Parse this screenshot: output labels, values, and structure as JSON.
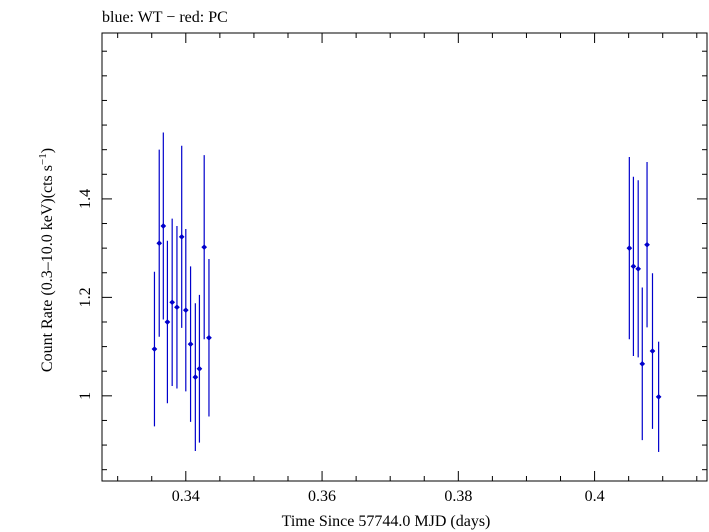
{
  "chart_data": {
    "type": "scatter",
    "title": "blue: WT − red: PC",
    "xlabel": "Time Since 57744.0 MJD (days)",
    "ylabel_parts": {
      "before": "Count Rate (0.3–10.0 keV)(cts s",
      "sup": "−1",
      "after": ")"
    },
    "xlim": [
      0.3277,
      0.4165
    ],
    "ylim": [
      0.827,
      1.737
    ],
    "xticks": [
      0.34,
      0.36,
      0.38,
      0.4
    ],
    "xticklabels": [
      "0.34",
      "0.36",
      "0.38",
      "0.4"
    ],
    "yticks": [
      1.0,
      1.2,
      1.4
    ],
    "yticklabels": [
      "1",
      "1.2",
      "1.4"
    ],
    "grid": false,
    "series": [
      {
        "name": "WT",
        "color": "#0000cc",
        "x_halfwidth": 0.00033,
        "points": [
          {
            "x": 0.3354,
            "y": 1.095,
            "err": 0.157
          },
          {
            "x": 0.3361,
            "y": 1.31,
            "err": 0.19
          },
          {
            "x": 0.3367,
            "y": 1.345,
            "err": 0.19
          },
          {
            "x": 0.3373,
            "y": 1.15,
            "err": 0.165
          },
          {
            "x": 0.338,
            "y": 1.19,
            "err": 0.17
          },
          {
            "x": 0.3387,
            "y": 1.18,
            "err": 0.165
          },
          {
            "x": 0.3394,
            "y": 1.323,
            "err": 0.185
          },
          {
            "x": 0.34,
            "y": 1.174,
            "err": 0.165
          },
          {
            "x": 0.3407,
            "y": 1.105,
            "err": 0.158
          },
          {
            "x": 0.3414,
            "y": 1.038,
            "err": 0.15
          },
          {
            "x": 0.342,
            "y": 1.055,
            "err": 0.15
          },
          {
            "x": 0.3427,
            "y": 1.302,
            "err": 0.187
          },
          {
            "x": 0.3434,
            "y": 1.118,
            "err": 0.16
          },
          {
            "x": 0.4051,
            "y": 1.3,
            "err": 0.185
          },
          {
            "x": 0.4057,
            "y": 1.263,
            "err": 0.182
          },
          {
            "x": 0.4064,
            "y": 1.258,
            "err": 0.18
          },
          {
            "x": 0.407,
            "y": 1.065,
            "err": 0.155
          },
          {
            "x": 0.4077,
            "y": 1.307,
            "err": 0.168
          },
          {
            "x": 0.4085,
            "y": 1.091,
            "err": 0.158
          },
          {
            "x": 0.4094,
            "y": 0.998,
            "err": 0.112
          }
        ]
      }
    ]
  }
}
